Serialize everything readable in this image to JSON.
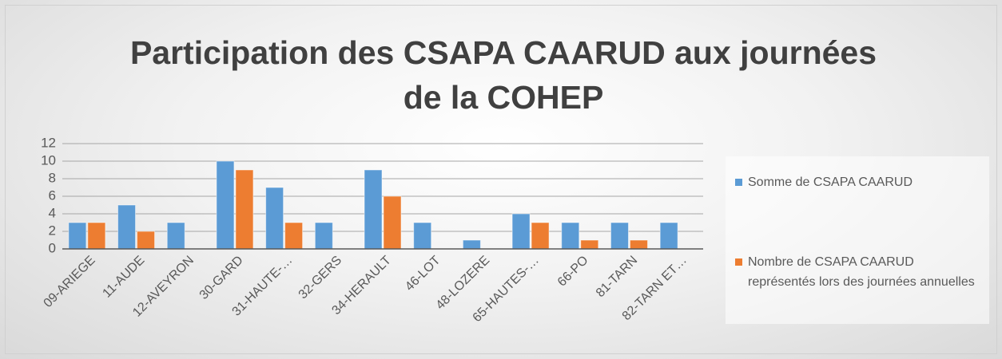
{
  "chart_data": {
    "type": "bar",
    "title": "Participation des CSAPA CAARUD aux journées de la COHEP",
    "categories": [
      "09-ARIEGE",
      "11-AUDE",
      "12-AVEYRON",
      "30-GARD",
      "31-HAUTE-…",
      "32-GERS",
      "34-HERAULT",
      "46-LOT",
      "48-LOZERE",
      "65-HAUTES-…",
      "66-PO",
      "81-TARN",
      "82-TARN ET…"
    ],
    "series": [
      {
        "name": "Somme de CSAPA CAARUD",
        "color": "#5b9bd5",
        "values": [
          3,
          5,
          3,
          10,
          7,
          3,
          9,
          3,
          1,
          4,
          3,
          3,
          3
        ]
      },
      {
        "name": "Nombre de CSAPA CAARUD représentés lors des journées annuelles",
        "color": "#ed7d31",
        "values": [
          3,
          2,
          null,
          9,
          3,
          null,
          6,
          null,
          null,
          3,
          1,
          1,
          null
        ]
      }
    ],
    "ylim": [
      0,
      12
    ],
    "yticks": [
      0,
      2,
      4,
      6,
      8,
      10,
      12
    ],
    "grid": true,
    "legend": "right"
  }
}
